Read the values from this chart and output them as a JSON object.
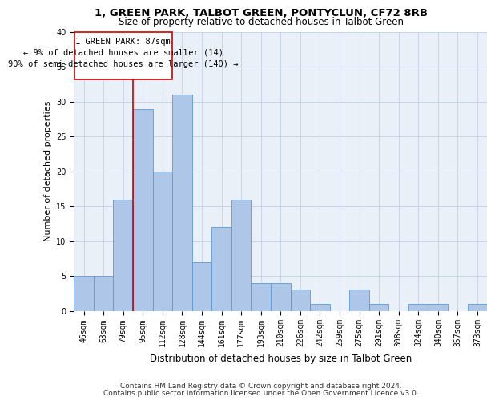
{
  "title_line1": "1, GREEN PARK, TALBOT GREEN, PONTYCLUN, CF72 8RB",
  "title_line2": "Size of property relative to detached houses in Talbot Green",
  "xlabel": "Distribution of detached houses by size in Talbot Green",
  "ylabel": "Number of detached properties",
  "footnote1": "Contains HM Land Registry data © Crown copyright and database right 2024.",
  "footnote2": "Contains public sector information licensed under the Open Government Licence v3.0.",
  "annotation_line1": "1 GREEN PARK: 87sqm",
  "annotation_line2": "← 9% of detached houses are smaller (14)",
  "annotation_line3": "90% of semi-detached houses are larger (140) →",
  "bar_labels": [
    "46sqm",
    "63sqm",
    "79sqm",
    "95sqm",
    "112sqm",
    "128sqm",
    "144sqm",
    "161sqm",
    "177sqm",
    "193sqm",
    "210sqm",
    "226sqm",
    "242sqm",
    "259sqm",
    "275sqm",
    "291sqm",
    "308sqm",
    "324sqm",
    "340sqm",
    "357sqm",
    "373sqm"
  ],
  "bar_values": [
    5,
    5,
    16,
    29,
    20,
    31,
    7,
    12,
    16,
    4,
    4,
    3,
    1,
    0,
    3,
    1,
    0,
    1,
    1,
    0,
    1
  ],
  "bar_color": "#aec6e8",
  "bar_edge_color": "#5b9bd5",
  "red_line_x": 2.5,
  "red_line_color": "#cc0000",
  "annotation_box_color": "#ffffff",
  "annotation_box_edge": "#cc0000",
  "ylim": [
    0,
    40
  ],
  "yticks": [
    0,
    5,
    10,
    15,
    20,
    25,
    30,
    35,
    40
  ],
  "grid_color": "#c8d4e8",
  "bg_color": "#eaf0f8",
  "title_fontsize": 9.5,
  "subtitle_fontsize": 8.5,
  "xlabel_fontsize": 8.5,
  "ylabel_fontsize": 8,
  "tick_fontsize": 7,
  "annotation_fontsize": 7.5,
  "footnote_fontsize": 6.5
}
